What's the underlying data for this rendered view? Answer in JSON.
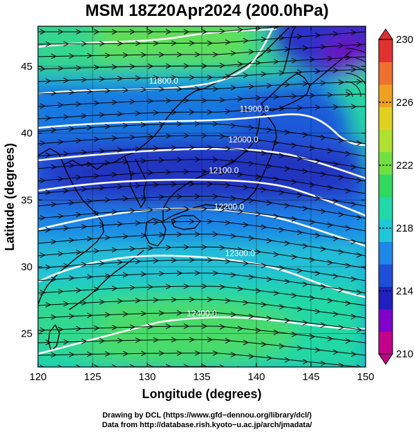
{
  "title": "MSM 18Z20Apr2024 (200.0hPa)",
  "credits": {
    "line1": "Drawing by DCL (https://www.gfd−dennou.org/library/dcl/)",
    "line2": "Data from http://database.rish.kyoto−u.ac.jp/arch/jmadata/"
  },
  "map": {
    "type": "contour map with wind streamlines",
    "xlabel": "Longitude (degrees)",
    "ylabel": "Latitude  (degrees)",
    "xlim": [
      120,
      150
    ],
    "ylim": [
      22.5,
      48
    ],
    "xticks": [
      "120",
      "125",
      "130",
      "135",
      "140",
      "145",
      "150"
    ],
    "yticks": [
      "25",
      "30",
      "35",
      "40",
      "45"
    ],
    "grid": true,
    "fill_variable_range": [
      210,
      230
    ],
    "contour_labels": [
      {
        "text": "11800.0",
        "lon": 131.5,
        "lat": 43.7
      },
      {
        "text": "11900.0",
        "lon": 139.8,
        "lat": 41.6
      },
      {
        "text": "12000.0",
        "lon": 138.8,
        "lat": 39.3
      },
      {
        "text": "12100.0",
        "lon": 137.0,
        "lat": 37.0
      },
      {
        "text": "12200.0",
        "lon": 137.5,
        "lat": 34.3
      },
      {
        "text": "12300.0",
        "lon": 138.5,
        "lat": 30.8
      },
      {
        "text": "12400.0",
        "lon": 135.0,
        "lat": 26.3
      }
    ]
  },
  "colorbar": {
    "min": 210,
    "max": 230,
    "tick_labels": [
      "230",
      "226",
      "222",
      "218",
      "214",
      "210"
    ],
    "tick_values": [
      230,
      226,
      222,
      218,
      214,
      210
    ],
    "colors_low_to_high": [
      "#c2008a",
      "#8000cc",
      "#2020c0",
      "#1e4fd8",
      "#1e88e8",
      "#1ec8d8",
      "#20d8a8",
      "#30d860",
      "#70e040",
      "#b0e030",
      "#e0d020",
      "#f0a020",
      "#f07030",
      "#e03030"
    ]
  }
}
